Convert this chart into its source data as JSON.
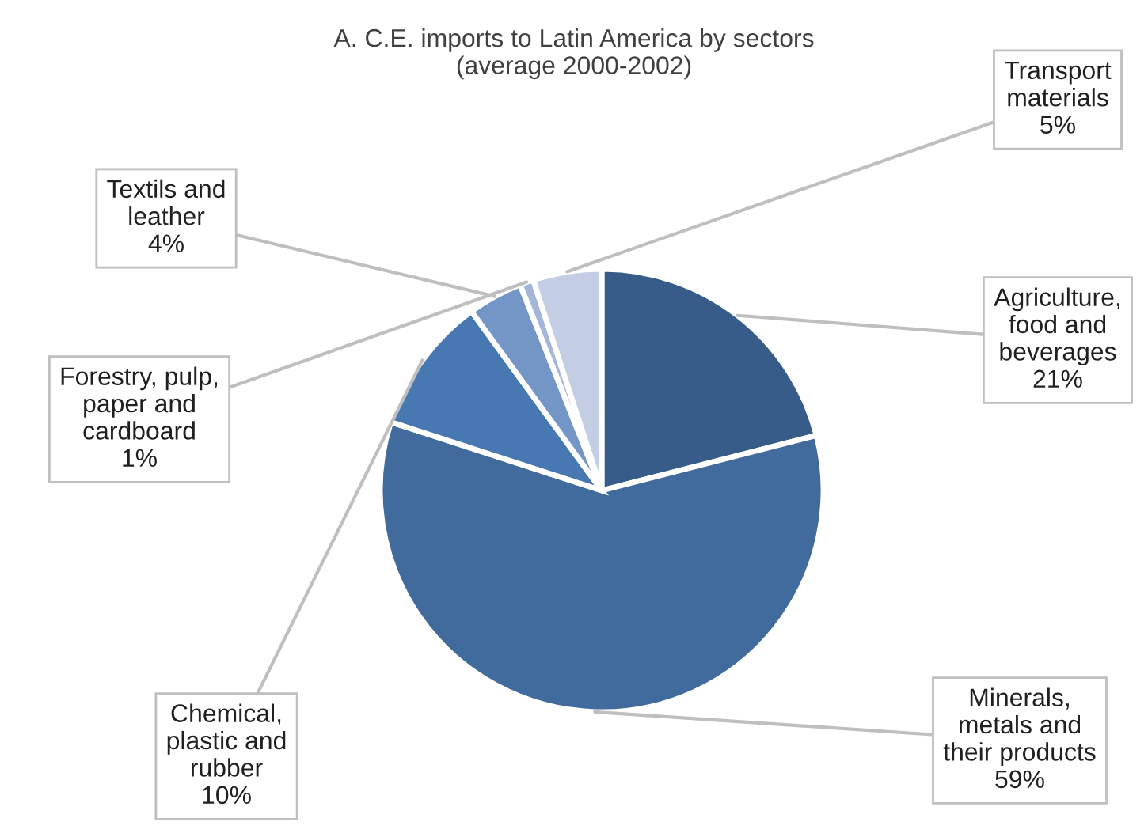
{
  "chart_data": {
    "type": "pie",
    "title": "A. C.E. imports to Latin America by sectors\n(average 2000-2002)",
    "categories": [
      "Agriculture,\nfood and\nbeverages",
      "Minerals,\nmetals and\ntheir products",
      "Chemical,\nplastic and\nrubber",
      "Textils and\nleather",
      "Forestry, pulp,\npaper and\ncardboard",
      "Transport\nmaterials"
    ],
    "values": [
      21,
      59,
      10,
      4,
      1,
      5
    ],
    "value_labels": [
      "21%",
      "59%",
      "10%",
      "4%",
      "1%",
      "5%"
    ],
    "colors": [
      "#375c8a",
      "#416b9d",
      "#4878b1",
      "#7496c6",
      "#a3b5d8",
      "#c3cde3"
    ],
    "legend": false
  }
}
